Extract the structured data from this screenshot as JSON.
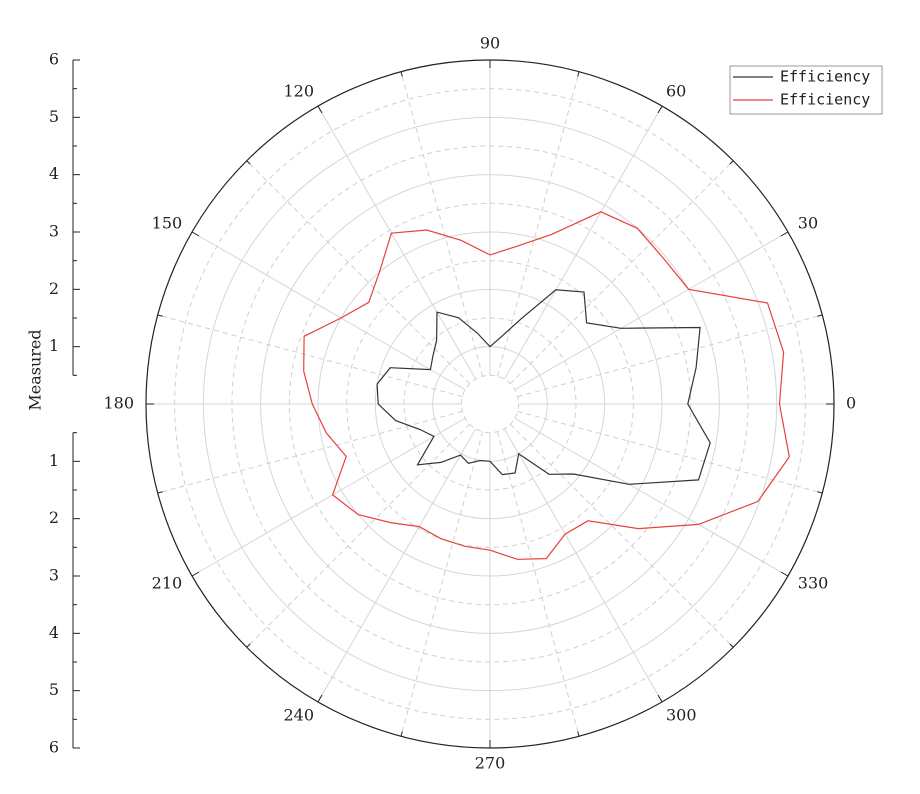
{
  "chart_data": {
    "type": "polar-line",
    "theta": [
      0,
      10,
      20,
      30,
      40,
      50,
      60,
      70,
      80,
      90,
      100,
      110,
      120,
      130,
      140,
      150,
      160,
      170,
      180,
      190,
      200,
      210,
      220,
      230,
      240,
      250,
      260,
      270,
      280,
      290,
      300,
      310,
      320,
      330,
      340,
      350
    ],
    "series": [
      {
        "name": "Efficiency",
        "color": "#333333",
        "values": [
          3.45,
          3.65,
          3.9,
          2.64,
          2.2,
          2.55,
          2.3,
          1.58,
          1.2,
          1.0,
          1.25,
          1.6,
          1.85,
          1.45,
          1.3,
          1.2,
          1.85,
          2.0,
          1.95,
          1.67,
          1.3,
          1.13,
          1.65,
          1.33,
          1.03,
          1.1,
          1.0,
          1.0,
          1.25,
          1.28,
          1.0,
          1.6,
          1.9,
          2.8,
          3.87,
          3.9
        ]
      },
      {
        "name": "Efficiency",
        "color": "#e8413b",
        "values": [
          5.05,
          5.2,
          5.15,
          4.0,
          3.95,
          4.0,
          3.87,
          3.15,
          2.8,
          2.6,
          2.9,
          3.23,
          3.44,
          3.0,
          2.76,
          3.0,
          3.45,
          3.3,
          3.1,
          2.9,
          2.67,
          3.17,
          3.0,
          2.7,
          2.47,
          2.5,
          2.52,
          2.55,
          2.75,
          2.87,
          2.62,
          2.66,
          3.38,
          4.2,
          4.97,
          5.3
        ]
      }
    ],
    "thetaticks": [
      0,
      30,
      60,
      90,
      120,
      150,
      180,
      210,
      240,
      270,
      300,
      330
    ],
    "ylabel": "Measured",
    "ylim": [
      0,
      6
    ],
    "yticks": [
      1,
      2,
      3,
      4,
      5,
      6
    ],
    "grid": true,
    "legend": "upper right"
  }
}
